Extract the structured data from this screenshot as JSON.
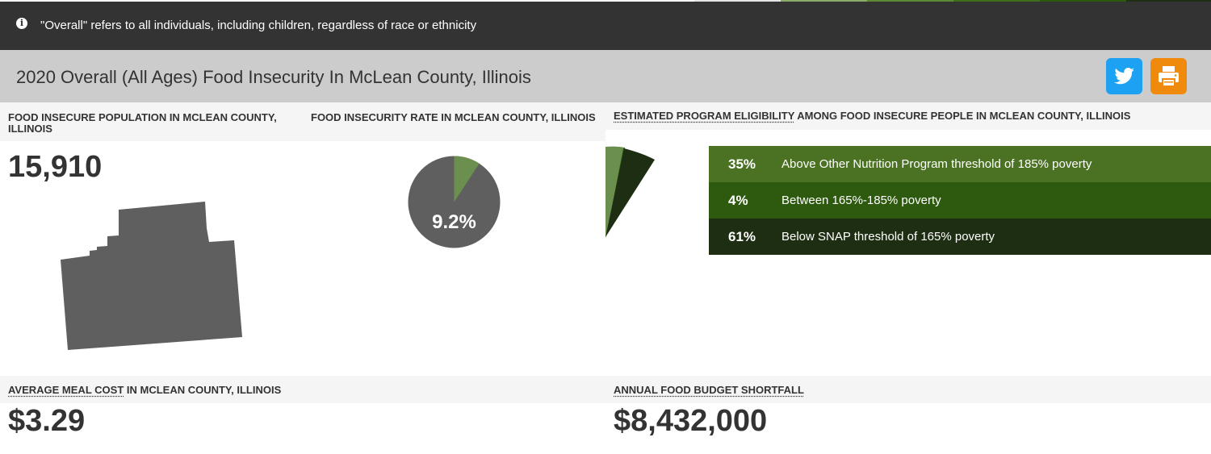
{
  "notice": {
    "icon": "info-icon",
    "text": "\"Overall\" refers to all individuals, including children, regardless of race or ethnicity"
  },
  "title": "2020 Overall (All Ages) Food Insecurity In McLean County, Illinois",
  "share": {
    "twitter_icon": "twitter-icon",
    "print_icon": "printer-icon"
  },
  "colors": {
    "dark_bar": "#333333",
    "title_bg": "#cccccc",
    "twitter": "#1da1f2",
    "print": "#f08a0c",
    "green_light": "#6b8f4e",
    "green_mid": "#2e5a0f",
    "green_dark": "#1e2e13",
    "pie_gray": "#5f5f5f"
  },
  "population": {
    "header": "FOOD INSECURE POPULATION IN MCLEAN COUNTY, ILLINOIS",
    "value": "15,910"
  },
  "rate": {
    "header": "FOOD INSECURITY RATE IN MCLEAN COUNTY, ILLINOIS",
    "value": "9.2%",
    "fraction": 0.092
  },
  "eligibility": {
    "header_link": "ESTIMATED PROGRAM ELIGIBILITY",
    "header_rest": " AMONG FOOD INSECURE PEOPLE IN MCLEAN COUNTY, ILLINOIS",
    "rows": [
      {
        "pct": "35%",
        "label": "Above Other Nutrition Program threshold of 185% poverty",
        "value": 35,
        "color": "#4a7222"
      },
      {
        "pct": "4%",
        "label": "Between 165%-185% poverty",
        "value": 4,
        "color": "#2e5a0f"
      },
      {
        "pct": "61%",
        "label": "Below SNAP threshold of 165% poverty",
        "value": 61,
        "color": "#1e2e13"
      }
    ]
  },
  "meal_cost": {
    "header_link": "AVERAGE MEAL COST",
    "header_rest": " IN MCLEAN COUNTY, ILLINOIS",
    "value": "$3.29"
  },
  "shortfall": {
    "header_link": "ANNUAL FOOD BUDGET SHORTFALL",
    "value": "$8,432,000"
  }
}
